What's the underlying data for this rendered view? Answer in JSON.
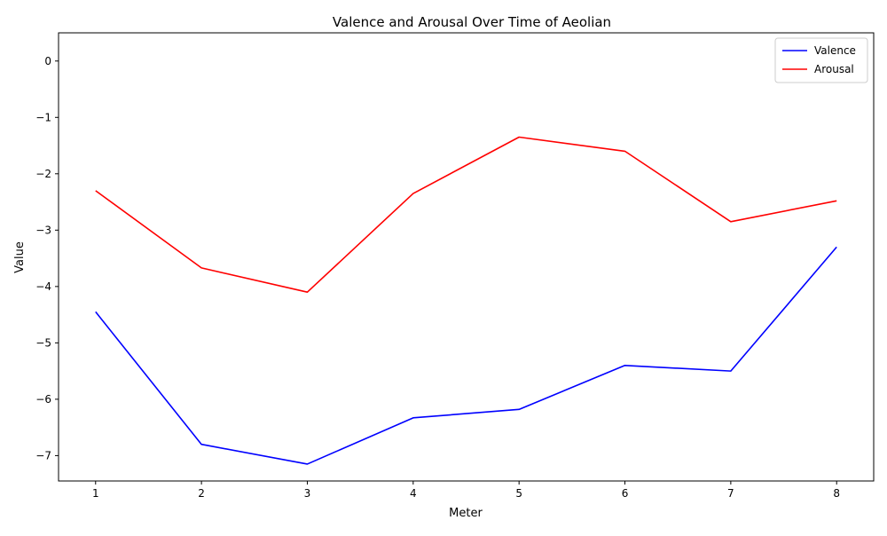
{
  "chart_data": {
    "type": "line",
    "title": "Valence and Arousal Over Time of Aeolian",
    "xlabel": "Meter",
    "ylabel": "Value",
    "x": [
      1,
      2,
      3,
      4,
      5,
      6,
      7,
      8
    ],
    "xlim": [
      0.65,
      8.35
    ],
    "ylim": [
      -7.45,
      0.5
    ],
    "xticks": [
      1,
      2,
      3,
      4,
      5,
      6,
      7,
      8
    ],
    "yticks": [
      0,
      -1,
      -2,
      -3,
      -4,
      -5,
      -6,
      -7
    ],
    "ytick_labels": [
      "0",
      "−1",
      "−2",
      "−3",
      "−4",
      "−5",
      "−6",
      "−7"
    ],
    "legend_position": "top-right",
    "grid": false,
    "series": [
      {
        "name": "Valence",
        "color": "#0000ff",
        "values": [
          -4.45,
          -6.8,
          -7.15,
          -6.33,
          -6.18,
          -5.4,
          -5.5,
          -3.3
        ]
      },
      {
        "name": "Arousal",
        "color": "#ff0000",
        "values": [
          -2.3,
          -3.67,
          -4.1,
          -2.35,
          -1.35,
          -1.6,
          -2.85,
          -2.48
        ]
      }
    ]
  }
}
